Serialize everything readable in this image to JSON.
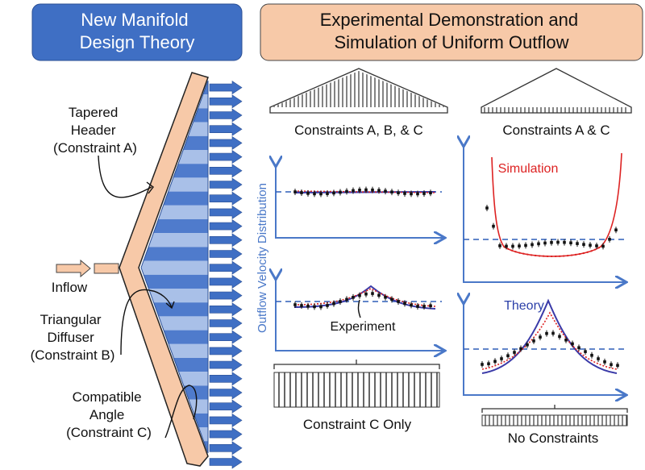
{
  "left_header": {
    "lines": [
      "New Manifold",
      "Design Theory"
    ]
  },
  "right_header": {
    "lines": [
      "Experimental Demonstration and",
      "Simulation of Uniform Outflow"
    ]
  },
  "labels": {
    "tapered_header": [
      "Tapered",
      "Header",
      "(Constraint A)"
    ],
    "inflow": "Inflow",
    "triangular_diffuser": [
      "Triangular",
      "Diffuser",
      "(Constraint B)"
    ],
    "compatible_angle": [
      "Compatible",
      "Angle",
      "(Constraint C)"
    ]
  },
  "panels": {
    "abc": "Constraints A, B, & C",
    "ac": "Constraints A & C",
    "c_only": "Constraint C Only",
    "none": "No Constraints"
  },
  "y_axis_label": "Outflow Velocity Distribution",
  "annotations": {
    "simulation": "Simulation",
    "experiment": "Experiment",
    "theory": "Theory"
  }
}
